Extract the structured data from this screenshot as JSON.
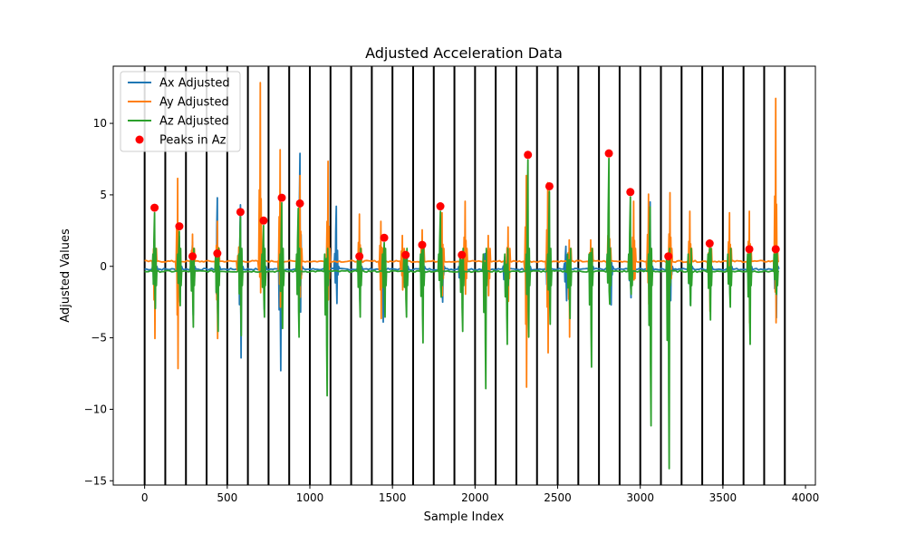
{
  "chart_data": {
    "type": "line",
    "title": "Adjusted Acceleration Data",
    "xlabel": "Sample Index",
    "ylabel": "Adjusted Values",
    "xlim": [
      -190,
      4060
    ],
    "ylim": [
      -15.3,
      14.0
    ],
    "xticks": [
      0,
      500,
      1000,
      1500,
      2000,
      2500,
      3000,
      3500,
      4000
    ],
    "xtick_labels": [
      "0",
      "500",
      "1000",
      "1500",
      "2000",
      "2500",
      "3000",
      "3500",
      "4000"
    ],
    "yticks": [
      -15,
      -10,
      -5,
      0,
      5,
      10
    ],
    "ytick_labels": [
      "−15",
      "−10",
      "−5",
      "0",
      "5",
      "10"
    ],
    "grid": false,
    "legend_position": "top-left",
    "vertical_lines": [
      0,
      125,
      250,
      375,
      500,
      625,
      750,
      875,
      1000,
      1125,
      1250,
      1375,
      1500,
      1625,
      1750,
      1875,
      2000,
      2125,
      2250,
      2375,
      2500,
      2625,
      2750,
      2875,
      3000,
      3125,
      3250,
      3375,
      3500,
      3625,
      3750,
      3875
    ],
    "series": [
      {
        "name": "Ax Adjusted",
        "color": "#1f77b4",
        "baseline": -0.2,
        "events": [
          [
            60,
            1.6,
            -2.6
          ],
          [
            210,
            2.3,
            -2.3
          ],
          [
            290,
            1.9,
            -3.2
          ],
          [
            440,
            5.0,
            -4.3
          ],
          [
            580,
            4.5,
            -6.2
          ],
          [
            720,
            1.7,
            -2.8
          ],
          [
            820,
            2.1,
            -7.1
          ],
          [
            940,
            8.1,
            -3.0
          ],
          [
            1160,
            4.4,
            -2.4
          ],
          [
            1300,
            1.5,
            -2.4
          ],
          [
            1440,
            1.2,
            -3.7
          ],
          [
            1580,
            0.8,
            -1.8
          ],
          [
            1680,
            1.0,
            -3.0
          ],
          [
            1800,
            1.3,
            -2.3
          ],
          [
            1910,
            0.7,
            -1.5
          ],
          [
            2060,
            1.1,
            -3.8
          ],
          [
            2180,
            0.9,
            -1.8
          ],
          [
            2320,
            1.4,
            -2.8
          ],
          [
            2440,
            1.3,
            -2.7
          ],
          [
            2550,
            1.6,
            -2.2
          ],
          [
            2700,
            1.2,
            -2.8
          ],
          [
            2820,
            1.5,
            -2.5
          ],
          [
            2940,
            1.6,
            -2.0
          ],
          [
            3060,
            4.7,
            -2.5
          ],
          [
            3180,
            1.2,
            -2.2
          ],
          [
            3300,
            1.1,
            -2.5
          ],
          [
            3420,
            1.4,
            -2.6
          ],
          [
            3540,
            0.8,
            -1.5
          ],
          [
            3660,
            1.0,
            -2.1
          ],
          [
            3820,
            1.5,
            -3.4
          ]
        ]
      },
      {
        "name": "Ay Adjusted",
        "color": "#ff7f0e",
        "baseline": 0.35,
        "events": [
          [
            60,
            2.2,
            -5.4
          ],
          [
            200,
            5.8,
            -7.5
          ],
          [
            290,
            1.9,
            -3.1
          ],
          [
            440,
            2.8,
            -5.4
          ],
          [
            570,
            1.0,
            -1.2
          ],
          [
            700,
            12.5,
            -2.2
          ],
          [
            820,
            7.8,
            -3.2
          ],
          [
            940,
            6.0,
            -2.5
          ],
          [
            1110,
            7.0,
            -2.7
          ],
          [
            1300,
            3.3,
            -1.4
          ],
          [
            1430,
            2.8,
            -4.0
          ],
          [
            1560,
            1.8,
            -2.0
          ],
          [
            1680,
            2.2,
            -1.7
          ],
          [
            1800,
            3.4,
            -2.4
          ],
          [
            1940,
            4.2,
            -2.3
          ],
          [
            2080,
            1.8,
            -2.4
          ],
          [
            2200,
            2.4,
            -2.8
          ],
          [
            2310,
            6.0,
            -8.8
          ],
          [
            2440,
            5.5,
            -6.4
          ],
          [
            2570,
            1.5,
            -5.3
          ],
          [
            2700,
            1.5,
            -1.6
          ],
          [
            2810,
            4.5,
            -1.9
          ],
          [
            2960,
            4.2,
            -1.3
          ],
          [
            3050,
            4.7,
            -3.0
          ],
          [
            3180,
            4.8,
            -1.5
          ],
          [
            3300,
            3.5,
            -1.3
          ],
          [
            3420,
            1.5,
            -3.5
          ],
          [
            3540,
            3.4,
            -1.7
          ],
          [
            3660,
            3.5,
            -4.3
          ],
          [
            3820,
            11.4,
            -4.3
          ]
        ]
      },
      {
        "name": "Az Adjusted",
        "color": "#2ca02c",
        "baseline": -0.35,
        "events": [
          [
            60,
            4.1,
            -2.6
          ],
          [
            210,
            2.8,
            -2.4
          ],
          [
            290,
            0.7,
            -3.9
          ],
          [
            440,
            0.9,
            -4.2
          ],
          [
            580,
            3.8,
            -4.5
          ],
          [
            720,
            3.2,
            -3.2
          ],
          [
            830,
            4.8,
            -4.0
          ],
          [
            930,
            4.4,
            -4.6
          ],
          [
            1100,
            0.9,
            -8.7
          ],
          [
            1300,
            0.7,
            -3.2
          ],
          [
            1450,
            2.0,
            -3.2
          ],
          [
            1580,
            0.8,
            -3.2
          ],
          [
            1680,
            1.5,
            -5.0
          ],
          [
            1790,
            4.2,
            -1.8
          ],
          [
            1920,
            0.8,
            -4.2
          ],
          [
            2060,
            0.6,
            -8.2
          ],
          [
            2190,
            0.5,
            -5.1
          ],
          [
            2320,
            7.8,
            -4.6
          ],
          [
            2450,
            5.6,
            -3.7
          ],
          [
            2570,
            0.8,
            -3.3
          ],
          [
            2700,
            1.3,
            -6.7
          ],
          [
            2810,
            7.9,
            -2.3
          ],
          [
            2940,
            5.2,
            -1.6
          ],
          [
            3060,
            4.5,
            -10.8
          ],
          [
            3170,
            0.7,
            -13.8
          ],
          [
            3300,
            0.5,
            -2.4
          ],
          [
            3420,
            1.6,
            -3.4
          ],
          [
            3540,
            0.3,
            -2.5
          ],
          [
            3660,
            1.2,
            -5.1
          ],
          [
            3820,
            1.2,
            -1.6
          ]
        ]
      }
    ],
    "peaks": {
      "name": "Peaks in Az",
      "color": "#ff0000",
      "x": [
        60,
        210,
        290,
        440,
        580,
        720,
        830,
        940,
        1300,
        1450,
        1580,
        1680,
        1790,
        1920,
        2320,
        2450,
        2810,
        2940,
        3170,
        3420,
        3660,
        3820
      ],
      "y": [
        4.1,
        2.8,
        0.7,
        0.9,
        3.8,
        3.2,
        4.8,
        4.4,
        0.7,
        2.0,
        0.8,
        1.5,
        4.2,
        0.8,
        7.8,
        5.6,
        7.9,
        5.2,
        0.7,
        1.6,
        1.2,
        1.2
      ]
    }
  }
}
